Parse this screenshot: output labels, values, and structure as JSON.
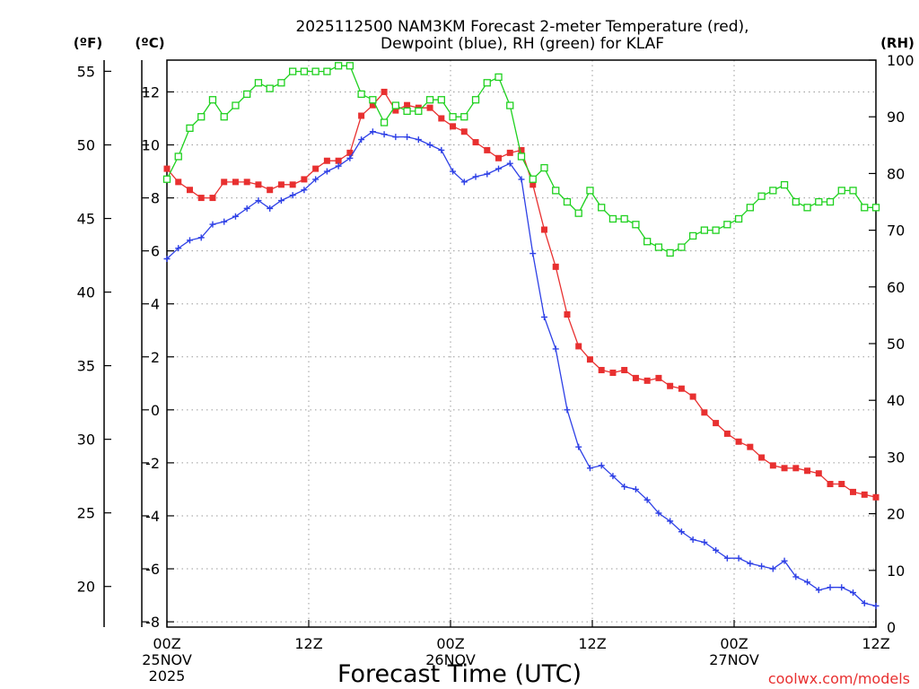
{
  "chart_data": {
    "type": "line",
    "title": [
      "2025112500 NAM3KM Forecast 2-meter Temperature (red),",
      "Dewpoint (blue), RH (green) for KLAF"
    ],
    "xlabel": "Forecast Time (UTC)",
    "credit": "coolwx.com/models",
    "units": {
      "f": "(ºF)",
      "c": "(ºC)",
      "rh": "(RH)"
    },
    "x_range_hours": [
      0,
      60
    ],
    "x_ticks": [
      {
        "hour": 0,
        "lines": [
          "00Z",
          "25NOV",
          "2025"
        ]
      },
      {
        "hour": 12,
        "lines": [
          "12Z"
        ]
      },
      {
        "hour": 24,
        "lines": [
          "00Z",
          "26NOV"
        ]
      },
      {
        "hour": 36,
        "lines": [
          "12Z"
        ]
      },
      {
        "hour": 48,
        "lines": [
          "00Z",
          "27NOV"
        ]
      },
      {
        "hour": 60,
        "lines": [
          "12Z"
        ]
      }
    ],
    "y_c_range": [
      -8.2,
      13.2
    ],
    "y_c_ticks": [
      "-8",
      "-6",
      "-4",
      "-2",
      "0",
      "2",
      "4",
      "6",
      "8",
      "10",
      "12"
    ],
    "y_f_ticks": [
      "20",
      "25",
      "30",
      "35",
      "40",
      "45",
      "50",
      "55"
    ],
    "y_rh_range": [
      0,
      100
    ],
    "y_rh_ticks": [
      "0",
      "10",
      "20",
      "30",
      "40",
      "50",
      "60",
      "70",
      "80",
      "90",
      "100"
    ],
    "colors": {
      "temperature": "#e83030",
      "dewpoint": "#2e40e6",
      "rh": "#1fd11f"
    },
    "series": [
      {
        "name": "Temperature (°C)",
        "axis": "c",
        "marker": "filled-square",
        "color": "#e83030",
        "values": [
          9.1,
          8.6,
          8.3,
          8.0,
          8.0,
          8.6,
          8.6,
          8.6,
          8.5,
          8.3,
          8.5,
          8.5,
          8.7,
          9.1,
          9.4,
          9.4,
          9.7,
          11.1,
          11.5,
          12.0,
          11.3,
          11.5,
          11.4,
          11.4,
          11.0,
          10.7,
          10.5,
          10.1,
          9.8,
          9.5,
          9.7,
          9.8,
          8.5,
          6.8,
          5.4,
          3.6,
          2.4,
          1.9,
          1.5,
          1.4,
          1.5,
          1.2,
          1.1,
          1.2,
          0.9,
          0.8,
          0.5,
          -0.1,
          -0.5,
          -0.9,
          -1.2,
          -1.4,
          -1.8,
          -2.1,
          -2.2,
          -2.2,
          -2.3,
          -2.4,
          -2.8,
          -2.8,
          -3.1,
          -3.2,
          -3.3
        ]
      },
      {
        "name": "Dewpoint (°C)",
        "axis": "c",
        "marker": "plus",
        "color": "#2e40e6",
        "values": [
          5.7,
          6.1,
          6.4,
          6.5,
          7.0,
          7.1,
          7.3,
          7.6,
          7.9,
          7.6,
          7.9,
          8.1,
          8.3,
          8.7,
          9.0,
          9.2,
          9.5,
          10.2,
          10.5,
          10.4,
          10.3,
          10.3,
          10.2,
          10.0,
          9.8,
          9.0,
          8.6,
          8.8,
          8.9,
          9.1,
          9.3,
          8.7,
          5.9,
          3.5,
          2.3,
          0.0,
          -1.4,
          -2.2,
          -2.1,
          -2.5,
          -2.9,
          -3.0,
          -3.4,
          -3.9,
          -4.2,
          -4.6,
          -4.9,
          -5.0,
          -5.3,
          -5.6,
          -5.6,
          -5.8,
          -5.9,
          -6.0,
          -5.7,
          -6.3,
          -6.5,
          -6.8,
          -6.7,
          -6.7,
          -6.9,
          -7.3,
          -7.4
        ]
      },
      {
        "name": "RH (%)",
        "axis": "rh",
        "marker": "open-square",
        "color": "#1fd11f",
        "values": [
          79,
          83,
          88,
          90,
          93,
          90,
          92,
          94,
          96,
          95,
          96,
          98,
          98,
          98,
          98,
          99,
          99,
          94,
          93,
          89,
          92,
          91,
          91,
          93,
          93,
          90,
          90,
          93,
          96,
          97,
          92,
          83,
          79,
          81,
          77,
          75,
          73,
          77,
          74,
          72,
          72,
          71,
          68,
          67,
          66,
          67,
          69,
          70,
          70,
          71,
          72,
          74,
          76,
          77,
          78,
          75,
          74,
          75,
          75,
          77,
          77,
          74,
          74
        ]
      }
    ]
  }
}
